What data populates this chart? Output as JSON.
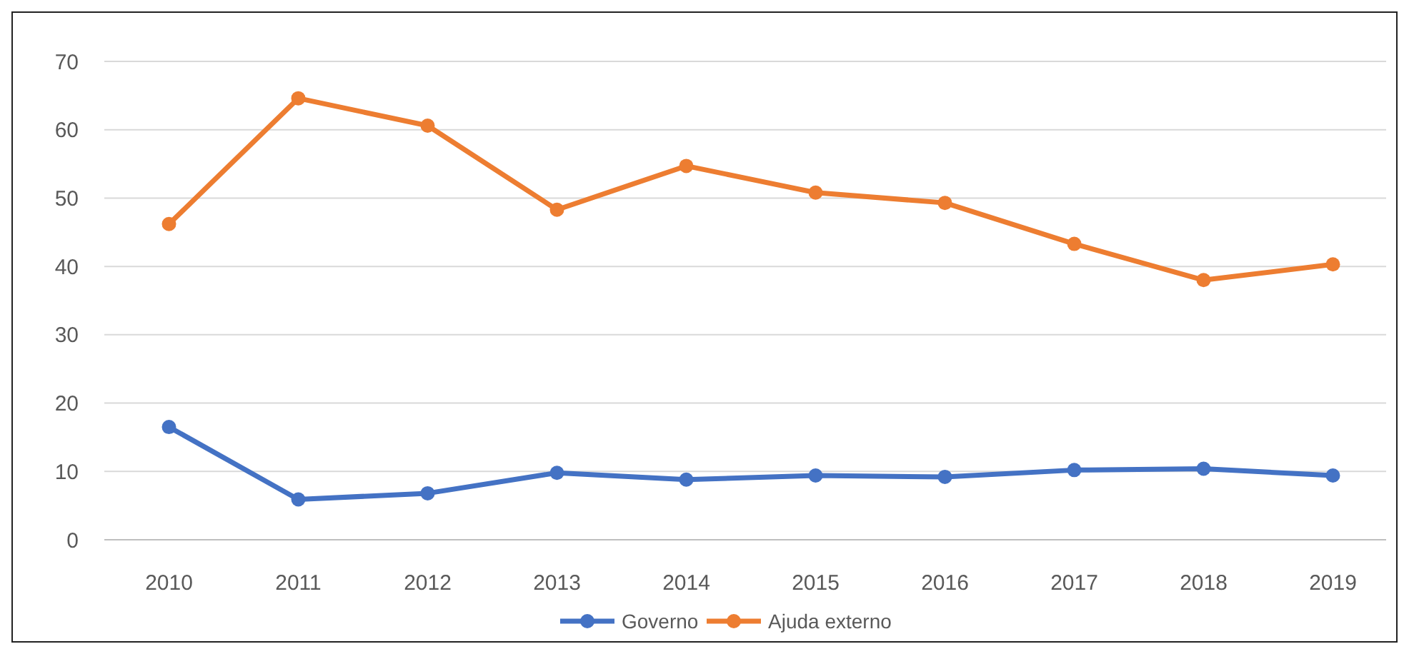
{
  "chart_data": {
    "type": "line",
    "categories": [
      "2010",
      "2011",
      "2012",
      "2013",
      "2014",
      "2015",
      "2016",
      "2017",
      "2018",
      "2019"
    ],
    "series": [
      {
        "name": "Governo",
        "color": "#4472c4",
        "values": [
          16.5,
          5.9,
          6.8,
          9.8,
          8.8,
          9.4,
          9.2,
          10.2,
          10.4,
          9.4
        ]
      },
      {
        "name": "Ajuda externo",
        "color": "#ed7d31",
        "values": [
          46.2,
          64.6,
          60.6,
          48.3,
          54.7,
          50.8,
          49.3,
          43.3,
          38.0,
          40.3
        ]
      }
    ],
    "ylim": [
      0,
      70
    ],
    "yticks": [
      0,
      10,
      20,
      30,
      40,
      50,
      60,
      70
    ],
    "grid": "y",
    "legend": "bottom",
    "marker": "circle",
    "line_style": "solid"
  }
}
